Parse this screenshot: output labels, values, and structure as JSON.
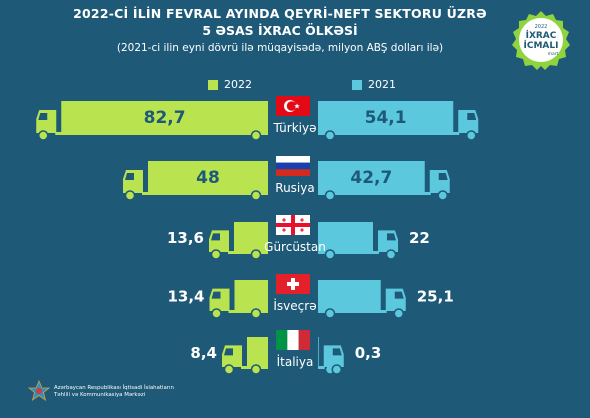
{
  "title_line1": "2022-Cİ İLİN FEVRAL AYINDA QEYRİ-NEFT SEKTORU ÜZRƏ",
  "title_line2": "5 ƏSAS İXRAC ÖLKƏSİ",
  "subtitle": "(2021-ci ilin eyni dövrü ilə müqayisədə, milyon ABŞ dolları ilə)",
  "badge": {
    "year": "2022",
    "line1": "İXRAC",
    "line2": "İCMALI",
    "month": "mart"
  },
  "footer": {
    "line1": "Azərbaycan Respublikası İqtisadi İslahatların",
    "line2": "Təhlili və Kommunikasiya Mərkəzi"
  },
  "colors": {
    "background": "#1e5a78",
    "y2022": "#b9e34f",
    "y2021": "#5bc8de"
  },
  "chart_data": {
    "type": "bar",
    "categories": [
      "Türkiyə",
      "Rusiya",
      "Gürcüstan",
      "İsveçrə",
      "İtaliya"
    ],
    "flags": [
      "turkey-flag-icon",
      "russia-flag-icon",
      "georgia-flag-icon",
      "switzerland-flag-icon",
      "italy-flag-icon"
    ],
    "series": [
      {
        "name": "2022",
        "values": [
          82.7,
          48,
          13.6,
          13.4,
          8.4
        ],
        "labels": [
          "82,7",
          "48",
          "13,6",
          "13,4",
          "8,4"
        ]
      },
      {
        "name": "2021",
        "values": [
          54.1,
          42.7,
          22,
          25.1,
          0.3
        ],
        "labels": [
          "54,1",
          "42,7",
          "22",
          "25,1",
          "0,3"
        ]
      }
    ]
  }
}
